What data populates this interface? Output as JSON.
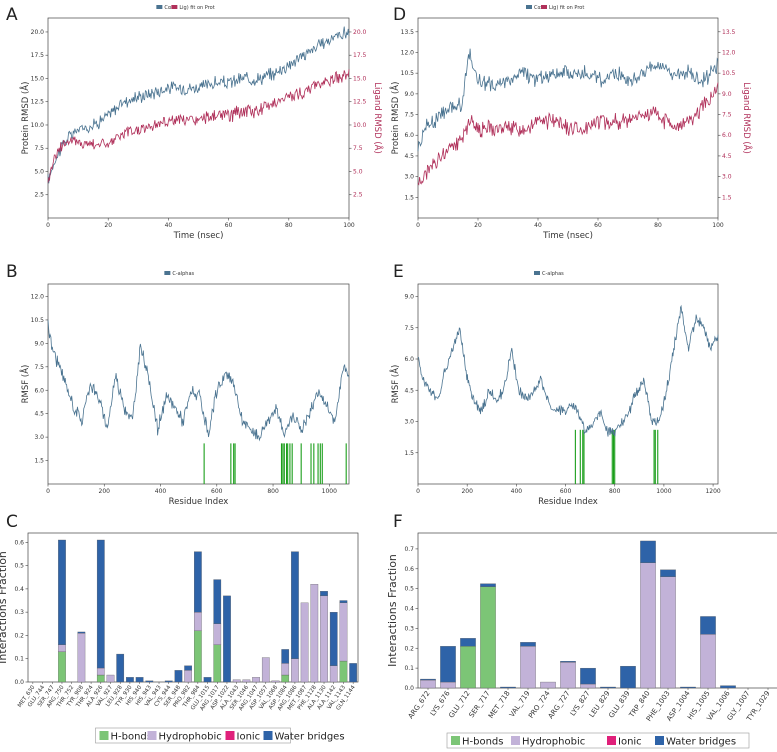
{
  "panels": {
    "A": "A",
    "B": "B",
    "C": "C",
    "D": "D",
    "E": "E",
    "F": "F"
  },
  "colors": {
    "protein": "#4a7390",
    "ligand": "#b0305a",
    "hbond": "#7cc576",
    "hydrophobic": "#c2b2d8",
    "ionic": "#e0207a",
    "water": "#2e63a8",
    "contact": "#1a9e1a"
  },
  "chart_data": [
    {
      "id": "A",
      "type": "line",
      "xlabel": "Time (nsec)",
      "ylabel": "Protein RMSD (Å)",
      "ylabel_right": "Ligand RMSD (Å)",
      "xlim": [
        0,
        100
      ],
      "ylim": [
        0,
        21.5
      ],
      "xticks": [
        0,
        20,
        40,
        60,
        80,
        100
      ],
      "yticks": [
        2.5,
        5.0,
        7.5,
        10.0,
        12.5,
        15.0,
        17.5,
        20.0
      ],
      "yticks_right": [
        2.5,
        5.0,
        7.5,
        10.0,
        12.5,
        15.0,
        17.5,
        20.0
      ],
      "legend": [
        "Cα",
        "Lig) fit on Prot"
      ],
      "series": [
        {
          "name": "Protein Cα",
          "x": [
            0,
            2,
            5,
            8,
            10,
            15,
            20,
            25,
            30,
            35,
            40,
            45,
            50,
            55,
            60,
            65,
            70,
            75,
            80,
            85,
            90,
            95,
            100
          ],
          "values": [
            4.0,
            6.0,
            8.0,
            9.0,
            9.5,
            10.0,
            11.0,
            12.5,
            13.0,
            13.5,
            14.0,
            14.0,
            14.0,
            14.5,
            14.5,
            15.0,
            15.0,
            15.5,
            16.5,
            17.5,
            18.5,
            19.5,
            20.0
          ]
        },
        {
          "name": "Ligand fit on Prot",
          "x": [
            0,
            2,
            5,
            8,
            10,
            15,
            20,
            25,
            30,
            35,
            40,
            45,
            50,
            55,
            60,
            65,
            70,
            75,
            80,
            85,
            90,
            95,
            100
          ],
          "values": [
            4.0,
            6.5,
            8.0,
            8.5,
            8.0,
            8.0,
            8.0,
            9.0,
            9.5,
            10.0,
            10.5,
            10.5,
            10.5,
            11.0,
            11.0,
            11.5,
            11.5,
            12.5,
            13.0,
            13.5,
            14.5,
            15.0,
            15.5
          ]
        }
      ]
    },
    {
      "id": "D",
      "type": "line",
      "xlabel": "Time (nsec)",
      "ylabel": "Protein RMSD (Å)",
      "ylabel_right": "Ligand RMSD (Å)",
      "xlim": [
        0,
        100
      ],
      "ylim": [
        0,
        14.5
      ],
      "xticks": [
        0,
        20,
        40,
        60,
        80,
        100
      ],
      "yticks": [
        1.5,
        3.0,
        4.5,
        6.0,
        7.5,
        9.0,
        10.5,
        12.0,
        13.5
      ],
      "yticks_right": [
        1.5,
        3.0,
        4.5,
        6.0,
        7.5,
        9.0,
        10.5,
        12.0,
        13.5
      ],
      "legend": [
        "Cα",
        "Lig) fit on Prot"
      ],
      "series": [
        {
          "name": "Protein Cα",
          "x": [
            0,
            2,
            5,
            8,
            10,
            13,
            15,
            17,
            20,
            25,
            30,
            35,
            40,
            45,
            50,
            55,
            60,
            65,
            70,
            75,
            80,
            85,
            90,
            95,
            100
          ],
          "values": [
            5.0,
            6.5,
            7.0,
            7.5,
            8.0,
            8.0,
            8.5,
            12.0,
            10.0,
            9.5,
            10.0,
            10.5,
            10.0,
            10.5,
            10.5,
            10.5,
            10.0,
            10.5,
            10.0,
            10.5,
            11.0,
            10.5,
            10.5,
            10.0,
            11.0
          ]
        },
        {
          "name": "Ligand fit on Prot",
          "x": [
            0,
            2,
            5,
            8,
            10,
            13,
            15,
            17,
            20,
            25,
            30,
            35,
            40,
            45,
            50,
            55,
            60,
            65,
            70,
            75,
            80,
            85,
            90,
            95,
            100
          ],
          "values": [
            2.5,
            3.0,
            4.0,
            4.5,
            5.0,
            5.5,
            6.0,
            7.0,
            6.5,
            6.5,
            6.5,
            6.5,
            7.0,
            7.0,
            6.5,
            6.5,
            7.0,
            7.0,
            7.0,
            7.5,
            7.5,
            6.5,
            7.0,
            8.0,
            9.5
          ]
        }
      ]
    },
    {
      "id": "B",
      "type": "line",
      "xlabel": "Residue Index",
      "ylabel": "RMSF (Å)",
      "xlim": [
        0,
        1070
      ],
      "ylim": [
        0,
        12.8
      ],
      "xticks": [
        0,
        200,
        400,
        600,
        800,
        1000
      ],
      "yticks": [
        1.5,
        3.0,
        4.5,
        6.0,
        7.5,
        9.0,
        10.5,
        12.0
      ],
      "legend": [
        "C-alphas"
      ],
      "series": [
        {
          "name": "C-alphas",
          "x": [
            0,
            10,
            30,
            60,
            90,
            120,
            150,
            180,
            210,
            240,
            270,
            300,
            330,
            360,
            390,
            420,
            450,
            480,
            510,
            540,
            570,
            600,
            630,
            660,
            690,
            720,
            750,
            780,
            810,
            840,
            870,
            900,
            930,
            960,
            990,
            1020,
            1050,
            1070
          ],
          "values": [
            10.5,
            9.0,
            8.0,
            6.5,
            5.0,
            4.0,
            6.5,
            5.5,
            3.5,
            7.0,
            5.0,
            4.0,
            9.0,
            6.5,
            3.5,
            5.5,
            5.0,
            4.0,
            6.0,
            5.5,
            3.0,
            6.0,
            7.0,
            6.5,
            4.0,
            3.5,
            3.0,
            4.0,
            5.0,
            3.0,
            4.5,
            3.5,
            4.5,
            6.0,
            5.0,
            4.0,
            7.5,
            7.0
          ]
        }
      ],
      "contacts": [
        555,
        650,
        660,
        665,
        830,
        835,
        840,
        848,
        852,
        860,
        868,
        900,
        935,
        945,
        960,
        968,
        975,
        1060
      ]
    },
    {
      "id": "E",
      "type": "line",
      "xlabel": "Residue Index",
      "ylabel": "RMSF (Å)",
      "xlim": [
        0,
        1220
      ],
      "ylim": [
        0,
        9.6
      ],
      "xticks": [
        0,
        200,
        400,
        600,
        800,
        1000,
        1200
      ],
      "yticks": [
        1.5,
        3.0,
        4.5,
        6.0,
        7.5,
        9.0
      ],
      "legend": [
        "C-alphas"
      ],
      "series": [
        {
          "name": "C-alphas",
          "x": [
            0,
            20,
            50,
            80,
            110,
            140,
            170,
            200,
            230,
            260,
            290,
            320,
            350,
            380,
            410,
            440,
            470,
            500,
            530,
            560,
            590,
            620,
            650,
            680,
            710,
            740,
            770,
            800,
            830,
            860,
            890,
            920,
            950,
            980,
            1010,
            1040,
            1070,
            1100,
            1130,
            1160,
            1190,
            1210
          ],
          "values": [
            6.0,
            5.0,
            4.5,
            4.0,
            5.5,
            6.5,
            7.5,
            5.0,
            4.0,
            3.5,
            4.5,
            4.0,
            4.5,
            6.5,
            4.5,
            4.0,
            4.5,
            5.0,
            4.0,
            3.5,
            3.5,
            3.8,
            3.5,
            2.5,
            2.8,
            3.5,
            2.5,
            2.5,
            3.0,
            3.5,
            4.5,
            5.0,
            3.0,
            3.0,
            4.5,
            6.5,
            8.5,
            6.5,
            8.0,
            7.5,
            6.5,
            7.0
          ]
        }
      ],
      "contacts": [
        640,
        660,
        670,
        675,
        790,
        795,
        800,
        960,
        965,
        975
      ]
    },
    {
      "id": "C",
      "type": "bar",
      "ylabel": "Interactions Fraction",
      "ylim": [
        0,
        0.64
      ],
      "yticks": [
        0.0,
        0.1,
        0.2,
        0.3,
        0.4,
        0.5,
        0.6
      ],
      "categories": [
        "MET_630",
        "GLU_744",
        "SER_747",
        "ARG_750",
        "THR_752",
        "TYR_908",
        "THR_924",
        "ALA_926",
        "VAL_927",
        "LEU_928",
        "TYR_930",
        "HIS_940",
        "HIS_943",
        "VAL_943",
        "CYS_944",
        "SER_948",
        "PRO_982",
        "THR_984",
        "GLU_1015",
        "ARG_1017",
        "ASP_1022",
        "ALA_1043",
        "SER_1046",
        "ARG_1047",
        "ASP_1057",
        "VAL_1068",
        "ASP_1084",
        "ARG_1086",
        "MET_1087",
        "PHE_1128",
        "ALA_1130",
        "ALA_1142",
        "VAL_1143",
        "GLN_1144"
      ],
      "legend": [
        "H-bonds",
        "Hydrophobic",
        "Ionic",
        "Water bridges"
      ],
      "series": [
        {
          "name": "H-bonds",
          "values": [
            0,
            0,
            0,
            0.13,
            0,
            0,
            0,
            0.03,
            0,
            0,
            0,
            0,
            0,
            0,
            0,
            0,
            0,
            0.22,
            0,
            0.16,
            0,
            0,
            0,
            0,
            0,
            0,
            0.03,
            0,
            0,
            0,
            0,
            0,
            0.09,
            0
          ]
        },
        {
          "name": "Hydrophobic",
          "values": [
            0,
            0,
            0,
            0.03,
            0,
            0.21,
            0,
            0.03,
            0.03,
            0,
            0,
            0,
            0,
            0,
            0,
            0,
            0.05,
            0.08,
            0,
            0.09,
            0,
            0.01,
            0.01,
            0.02,
            0.105,
            0.005,
            0.05,
            0.1,
            0.34,
            0.42,
            0.37,
            0.07,
            0.25,
            0
          ]
        },
        {
          "name": "Ionic",
          "values": [
            0,
            0,
            0,
            0,
            0,
            0,
            0,
            0,
            0,
            0,
            0,
            0,
            0,
            0,
            0,
            0,
            0,
            0,
            0,
            0,
            0,
            0,
            0,
            0,
            0,
            0,
            0,
            0,
            0,
            0,
            0,
            0,
            0,
            0
          ]
        },
        {
          "name": "Water bridges",
          "values": [
            0,
            0,
            0,
            0.45,
            0,
            0.005,
            0,
            0.55,
            0,
            0.12,
            0.02,
            0.02,
            0.005,
            0,
            0.005,
            0.05,
            0.02,
            0.26,
            0.02,
            0.19,
            0.37,
            0,
            0,
            0,
            0,
            0,
            0.06,
            0.46,
            0,
            0,
            0.02,
            0.23,
            0.01,
            0.08
          ]
        }
      ]
    },
    {
      "id": "F",
      "type": "bar",
      "ylabel": "Interactions Fraction",
      "ylim": [
        0,
        0.78
      ],
      "yticks": [
        0.0,
        0.1,
        0.2,
        0.3,
        0.4,
        0.5,
        0.6,
        0.7
      ],
      "categories": [
        "ARG_672",
        "LYS_676",
        "GLU_712",
        "SER_717",
        "MET_718",
        "VAL_719",
        "PRO_724",
        "ARG_727",
        "LYS_827",
        "LEU_829",
        "GLU_839",
        "TRP_840",
        "PHE_1003",
        "ASP_1004",
        "HIS_1005",
        "VAL_1006",
        "GLY_1007",
        "TYR_1029"
      ],
      "legend": [
        "H-bonds",
        "Hydrophobic",
        "Ionic",
        "Water bridges"
      ],
      "series": [
        {
          "name": "H-bonds",
          "values": [
            0,
            0,
            0.21,
            0.51,
            0,
            0,
            0,
            0,
            0,
            0,
            0,
            0,
            0,
            0,
            0,
            0,
            0,
            0
          ]
        },
        {
          "name": "Hydrophobic",
          "values": [
            0.04,
            0.03,
            0,
            0,
            0,
            0.21,
            0.03,
            0.13,
            0.02,
            0,
            0,
            0.63,
            0.56,
            0,
            0.27,
            0,
            0,
            0
          ]
        },
        {
          "name": "Ionic",
          "values": [
            0,
            0,
            0,
            0,
            0,
            0,
            0,
            0,
            0,
            0,
            0,
            0,
            0,
            0,
            0,
            0,
            0,
            0
          ]
        },
        {
          "name": "Water bridges",
          "values": [
            0.005,
            0.18,
            0.04,
            0.015,
            0.005,
            0.02,
            0,
            0.005,
            0.08,
            0.005,
            0.11,
            0.11,
            0.035,
            0.005,
            0.09,
            0.012,
            0,
            0
          ]
        }
      ]
    }
  ]
}
